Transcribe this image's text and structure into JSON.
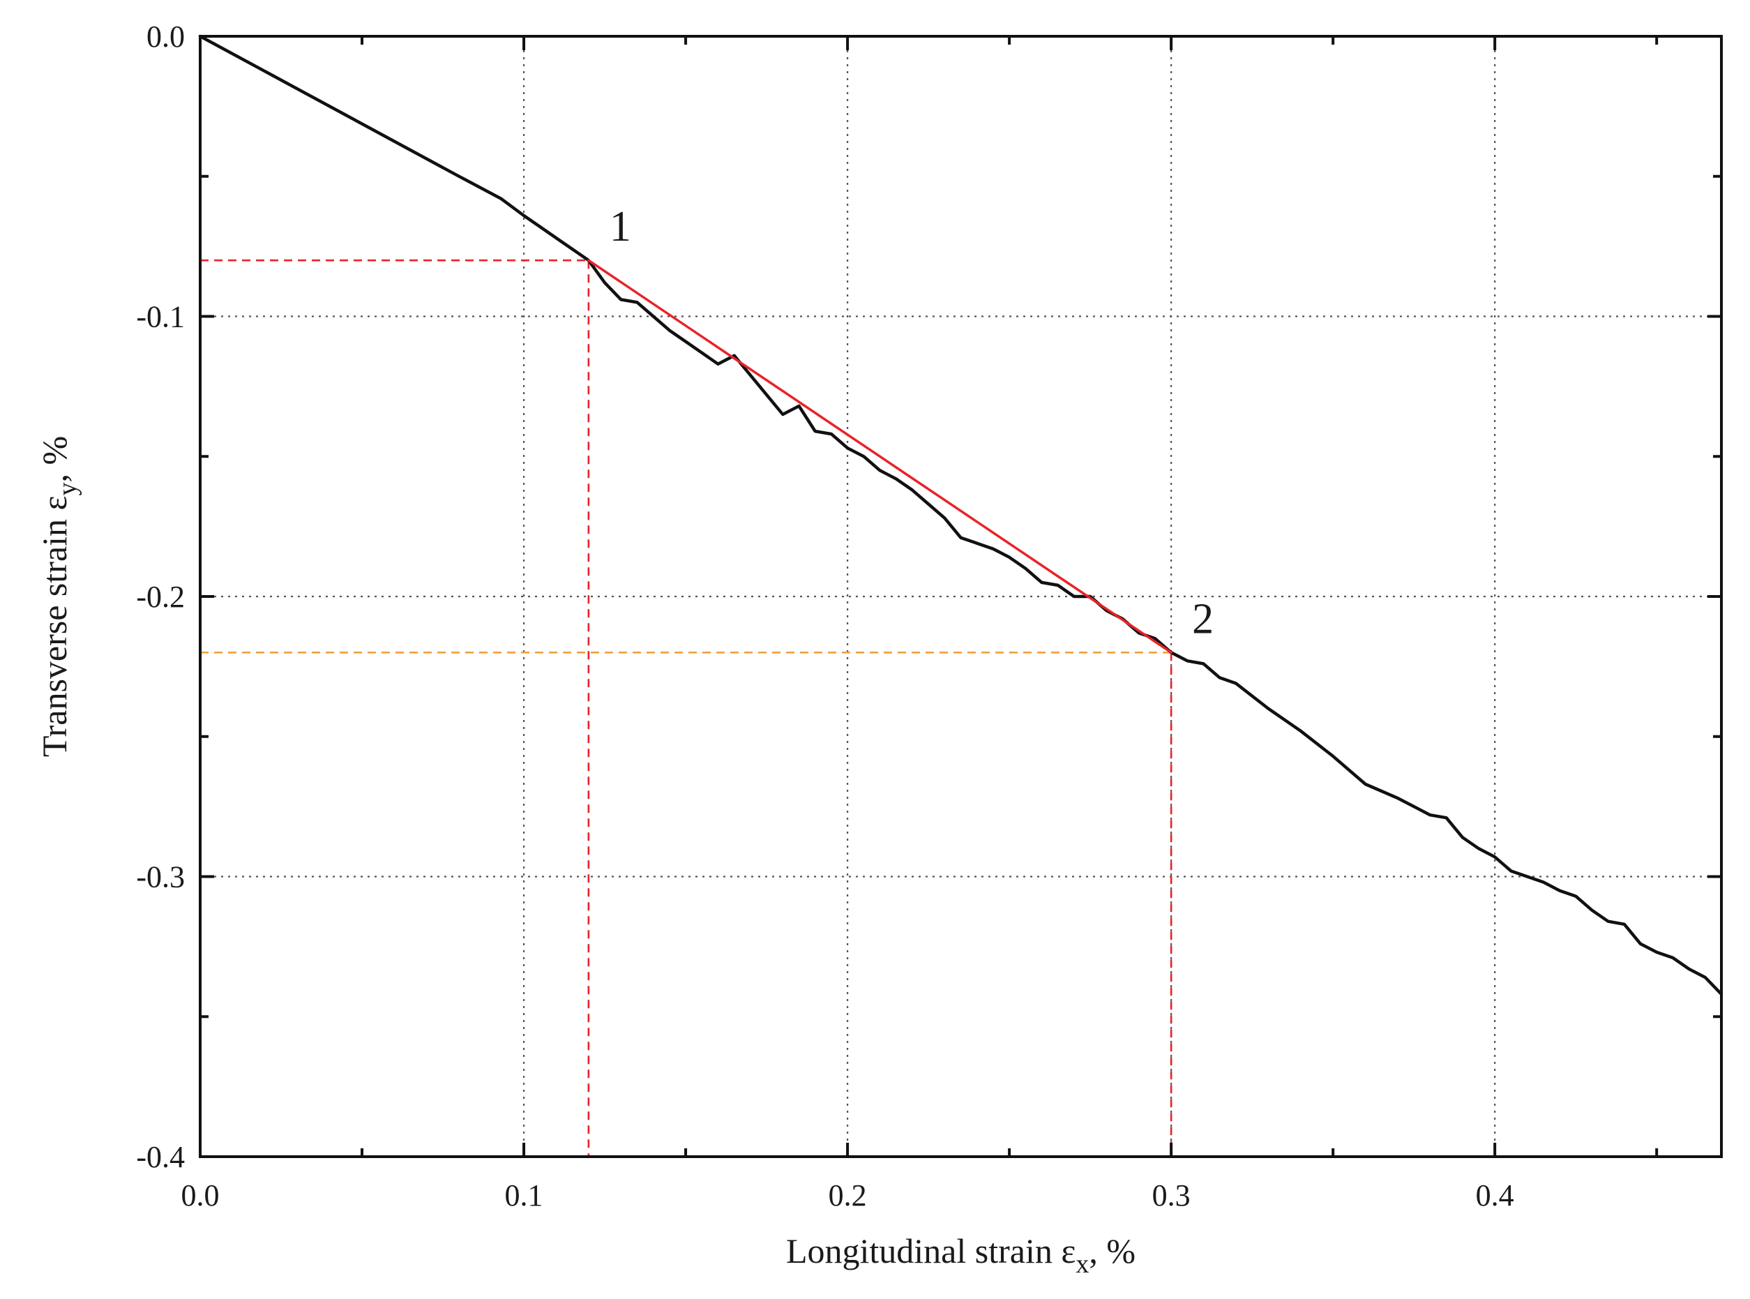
{
  "chart_data": {
    "type": "line",
    "xlabel": {
      "main": "Longitudinal strain ε",
      "sub": "x",
      "unit": ", %"
    },
    "ylabel": {
      "main": "Transverse strain ε",
      "sub": "y",
      "unit": ", %"
    },
    "xlim": [
      0.0,
      0.47
    ],
    "ylim": [
      -0.4,
      0.0
    ],
    "x_ticks": [
      "0.0",
      "0.1",
      "0.2",
      "0.3",
      "0.4"
    ],
    "x_tick_values": [
      0.0,
      0.1,
      0.2,
      0.3,
      0.4
    ],
    "y_ticks": [
      "0.0",
      "-0.1",
      "-0.2",
      "-0.3",
      "-0.4"
    ],
    "y_tick_values": [
      0.0,
      -0.1,
      -0.2,
      -0.3,
      -0.4
    ],
    "grid": "dotted at major ticks",
    "series": [
      {
        "color": "#111111",
        "x": [
          0.0,
          0.02,
          0.04,
          0.06,
          0.08,
          0.093,
          0.1,
          0.105,
          0.11,
          0.115,
          0.12,
          0.125,
          0.13,
          0.135,
          0.14,
          0.145,
          0.15,
          0.155,
          0.16,
          0.165,
          0.17,
          0.175,
          0.18,
          0.185,
          0.19,
          0.195,
          0.2,
          0.205,
          0.21,
          0.215,
          0.22,
          0.225,
          0.23,
          0.235,
          0.24,
          0.245,
          0.25,
          0.255,
          0.26,
          0.265,
          0.27,
          0.275,
          0.28,
          0.285,
          0.29,
          0.295,
          0.3,
          0.305,
          0.31,
          0.315,
          0.32,
          0.33,
          0.34,
          0.35,
          0.36,
          0.37,
          0.375,
          0.38,
          0.385,
          0.39,
          0.395,
          0.4,
          0.405,
          0.41,
          0.415,
          0.42,
          0.425,
          0.43,
          0.435,
          0.44,
          0.445,
          0.45,
          0.455,
          0.46,
          0.465,
          0.47
        ],
        "y": [
          0.0,
          -0.0125,
          -0.025,
          -0.0375,
          -0.05,
          -0.058,
          -0.064,
          -0.068,
          -0.072,
          -0.076,
          -0.08,
          -0.088,
          -0.094,
          -0.095,
          -0.1,
          -0.105,
          -0.109,
          -0.113,
          -0.117,
          -0.114,
          -0.121,
          -0.128,
          -0.135,
          -0.132,
          -0.141,
          -0.142,
          -0.147,
          -0.15,
          -0.155,
          -0.158,
          -0.162,
          -0.167,
          -0.172,
          -0.179,
          -0.181,
          -0.183,
          -0.186,
          -0.19,
          -0.195,
          -0.196,
          -0.2,
          -0.2,
          -0.205,
          -0.208,
          -0.213,
          -0.215,
          -0.22,
          -0.223,
          -0.224,
          -0.229,
          -0.231,
          -0.24,
          -0.248,
          -0.257,
          -0.267,
          -0.272,
          -0.275,
          -0.278,
          -0.279,
          -0.286,
          -0.29,
          -0.293,
          -0.298,
          -0.3,
          -0.302,
          -0.305,
          -0.307,
          -0.312,
          -0.316,
          -0.317,
          -0.324,
          -0.327,
          -0.329,
          -0.333,
          -0.336,
          -0.342
        ]
      },
      {
        "color": "#e8232a",
        "x": [
          0.12,
          0.3
        ],
        "y": [
          -0.08,
          -0.22
        ]
      }
    ],
    "reference_lines": [
      {
        "from": [
          0.0,
          -0.08
        ],
        "to": [
          0.12,
          -0.08
        ],
        "color": "#e8232a"
      },
      {
        "from": [
          0.12,
          -0.08
        ],
        "to": [
          0.12,
          -0.4
        ],
        "color": "#e8232a"
      },
      {
        "from": [
          0.0,
          -0.22
        ],
        "to": [
          0.3,
          -0.22
        ],
        "color": "#f0a040"
      },
      {
        "from": [
          0.3,
          -0.22
        ],
        "to": [
          0.3,
          -0.4
        ],
        "color": "#e8232a"
      }
    ],
    "annotations": [
      {
        "text": "1",
        "x": 0.12,
        "y": -0.08
      },
      {
        "text": "2",
        "x": 0.3,
        "y": -0.22
      }
    ]
  }
}
